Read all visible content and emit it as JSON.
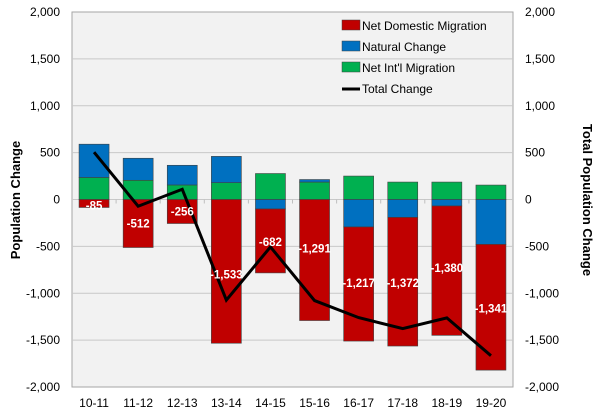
{
  "chart_data": {
    "type": "bar",
    "subtype": "stacked bar with line overlay",
    "title": "",
    "xlabel": "",
    "ylabel": "Population Change",
    "y2label": "Total Population Change",
    "ylim": [
      -2000,
      2000
    ],
    "y2lim": [
      -2000,
      2000
    ],
    "yticks": [
      "2,000",
      "1,500",
      "1,000",
      "500",
      "0",
      "-500",
      "-1,000",
      "-1,500",
      "-2,000"
    ],
    "ytick_values": [
      2000,
      1500,
      1000,
      500,
      0,
      -500,
      -1000,
      -1500,
      -2000
    ],
    "grid": true,
    "legend_position": "top-right",
    "categories": [
      "10-11",
      "11-12",
      "12-13",
      "13-14",
      "14-15",
      "15-16",
      "16-17",
      "17-18",
      "18-19",
      "19-20"
    ],
    "series": [
      {
        "name": "Net Domestic Migration",
        "kind": "bar",
        "color": "#C00000",
        "values": [
          -85,
          -512,
          -256,
          -1533,
          -682,
          -1291,
          -1217,
          -1372,
          -1380,
          -1341
        ],
        "labels": [
          "-85",
          "-512",
          "-256",
          "-1,533",
          "-682",
          "-1,291",
          "-1,217",
          "-1,372",
          "-1,380",
          "-1,341"
        ]
      },
      {
        "name": "Natural Change",
        "kind": "bar",
        "color": "#0070C0",
        "values": [
          355,
          235,
          210,
          280,
          -101,
          27,
          -293,
          -191,
          -69,
          -479
        ]
      },
      {
        "name": "Net Int'l Migration",
        "kind": "bar",
        "color": "#00B050",
        "values": [
          235,
          205,
          155,
          180,
          277,
          186,
          250,
          186,
          186,
          154
        ]
      },
      {
        "name": "Total Change",
        "kind": "line",
        "color": "#000000",
        "values": [
          505,
          -72,
          109,
          -1073,
          -506,
          -1078,
          -1260,
          -1377,
          -1263,
          -1666
        ]
      }
    ]
  }
}
